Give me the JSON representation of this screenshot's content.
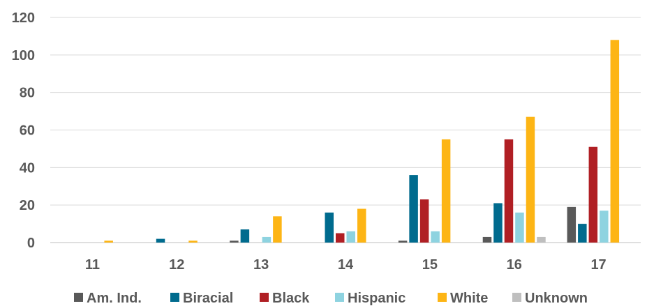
{
  "chart_data": {
    "type": "bar",
    "categories": [
      "11",
      "12",
      "13",
      "14",
      "15",
      "16",
      "17"
    ],
    "series": [
      {
        "name": "Am. Ind.",
        "color": "#595959",
        "values": [
          0,
          0,
          1,
          0,
          1,
          3,
          19
        ]
      },
      {
        "name": "Biracial",
        "color": "#006B8E",
        "values": [
          0,
          2,
          7,
          16,
          36,
          21,
          10
        ]
      },
      {
        "name": "Black",
        "color": "#B01F24",
        "values": [
          0,
          0,
          0,
          5,
          23,
          55,
          51
        ]
      },
      {
        "name": "Hispanic",
        "color": "#8ED3E0",
        "values": [
          0,
          0,
          3,
          6,
          6,
          16,
          17
        ]
      },
      {
        "name": "White",
        "color": "#FDB515",
        "values": [
          1,
          1,
          14,
          18,
          55,
          67,
          108
        ]
      },
      {
        "name": "Unknown",
        "color": "#BFBFBF",
        "values": [
          0,
          0,
          0,
          0,
          0,
          3,
          0
        ]
      }
    ],
    "ylim": [
      0,
      120
    ],
    "yticks": [
      0,
      20,
      40,
      60,
      80,
      100,
      120
    ],
    "grid": true,
    "legend_position": "bottom"
  }
}
